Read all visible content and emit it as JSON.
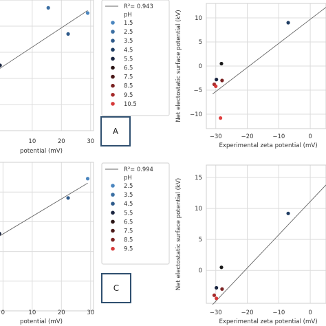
{
  "chart_data": [
    {
      "type": "scatter",
      "panel": "top-left",
      "xlabel": "potential (mV)",
      "ylabel": "",
      "xticks": [
        10,
        20,
        30
      ],
      "xlim": [
        -1.5,
        31
      ],
      "ylim": [
        0,
        10
      ],
      "grid": true,
      "points": [
        {
          "x": -1.0,
          "y": 5.0,
          "color": "#1a2540"
        },
        {
          "x": 15.5,
          "y": 9.4,
          "color": "#3b6fa3"
        },
        {
          "x": 22.3,
          "y": 7.4,
          "color": "#2e5a8a"
        },
        {
          "x": 29.0,
          "y": 9.0,
          "color": "#4b86bf"
        }
      ],
      "fit": {
        "x": [
          -1.5,
          29.0
        ],
        "y": [
          4.7,
          9.2
        ]
      },
      "legend": {
        "r2": "R²= 0.943",
        "title": "pH",
        "entries": [
          {
            "label": "1.5",
            "color": "#4b86bf"
          },
          {
            "label": "2.5",
            "color": "#3b6fa3"
          },
          {
            "label": "3.5",
            "color": "#2e5a8a"
          },
          {
            "label": "4.5",
            "color": "#1f3d63"
          },
          {
            "label": "5.5",
            "color": "#1a2540"
          },
          {
            "label": "6.5",
            "color": "#2a1414"
          },
          {
            "label": "7.5",
            "color": "#4a1818"
          },
          {
            "label": "8.5",
            "color": "#7a2222"
          },
          {
            "label": "9.5",
            "color": "#a52a2a"
          },
          {
            "label": "10.5",
            "color": "#d63a3a"
          }
        ]
      },
      "panel_label": "A"
    },
    {
      "type": "scatter",
      "panel": "top-right",
      "xlabel": "Experimental zeta potential (mV)",
      "ylabel": "Net electostatic surface potential (kV)",
      "xticks": [
        -30,
        -20,
        -10,
        0
      ],
      "yticks": [
        -10,
        -5,
        0,
        5,
        10
      ],
      "xlim": [
        -33,
        5
      ],
      "ylim": [
        -13,
        13
      ],
      "grid": true,
      "points": [
        {
          "x": -30.5,
          "y": -3.8,
          "color": "#a52a2a"
        },
        {
          "x": -30.0,
          "y": -4.2,
          "color": "#d63a3a"
        },
        {
          "x": -29.8,
          "y": -2.8,
          "color": "#1a2540"
        },
        {
          "x": -28.2,
          "y": 0.5,
          "color": "#1a1a1a"
        },
        {
          "x": -28.0,
          "y": -3.0,
          "color": "#7a2222"
        },
        {
          "x": -28.5,
          "y": -10.8,
          "color": "#e04040"
        },
        {
          "x": -7.0,
          "y": 9.0,
          "color": "#1f3d63"
        }
      ],
      "fit": {
        "x": [
          -31,
          5
        ],
        "y": [
          -5.8,
          12.2
        ]
      }
    },
    {
      "type": "scatter",
      "panel": "bottom-left",
      "xlabel": "potential (mV)",
      "ylabel": "",
      "xticks": [
        0,
        10,
        20,
        30
      ],
      "xlim": [
        -1.5,
        31
      ],
      "ylim": [
        0,
        10
      ],
      "grid": true,
      "points": [
        {
          "x": -1.2,
          "y": 5.2,
          "color": "#1a2540"
        },
        {
          "x": 22.3,
          "y": 7.6,
          "color": "#2e5a8a"
        },
        {
          "x": 29.0,
          "y": 8.9,
          "color": "#4b86bf"
        }
      ],
      "fit": {
        "x": [
          -1.5,
          29.0
        ],
        "y": [
          5.0,
          8.6
        ]
      },
      "legend": {
        "r2": "R²= 0.994",
        "title": "pH",
        "entries": [
          {
            "label": "2.5",
            "color": "#4b86bf"
          },
          {
            "label": "3.5",
            "color": "#3b6fa3"
          },
          {
            "label": "4.5",
            "color": "#2e5a8a"
          },
          {
            "label": "5.5",
            "color": "#1a2540"
          },
          {
            "label": "6.5",
            "color": "#2a1414"
          },
          {
            "label": "7.5",
            "color": "#4a1818"
          },
          {
            "label": "8.5",
            "color": "#7a2222"
          },
          {
            "label": "9.5",
            "color": "#d63a3a"
          }
        ]
      },
      "panel_label": "C"
    },
    {
      "type": "scatter",
      "panel": "bottom-right",
      "xlabel": "Experimental zeta potential (mV)",
      "ylabel": "Net electostatic surface potential (kV)",
      "xticks": [
        -30,
        -20,
        -10,
        0
      ],
      "yticks": [
        0,
        5,
        10,
        15
      ],
      "xlim": [
        -33,
        5
      ],
      "ylim": [
        -5.3,
        17
      ],
      "grid": true,
      "points": [
        {
          "x": -30.5,
          "y": -4.0,
          "color": "#a52a2a"
        },
        {
          "x": -29.8,
          "y": -4.5,
          "color": "#d63a3a"
        },
        {
          "x": -29.8,
          "y": -2.8,
          "color": "#1a2540"
        },
        {
          "x": -28.2,
          "y": 0.5,
          "color": "#1a1a1a"
        },
        {
          "x": -28.0,
          "y": -3.0,
          "color": "#7a2222"
        },
        {
          "x": -7.0,
          "y": 9.2,
          "color": "#1f3d63"
        }
      ],
      "fit": {
        "x": [
          -31,
          5
        ],
        "y": [
          -5.5,
          13.8
        ]
      }
    }
  ]
}
